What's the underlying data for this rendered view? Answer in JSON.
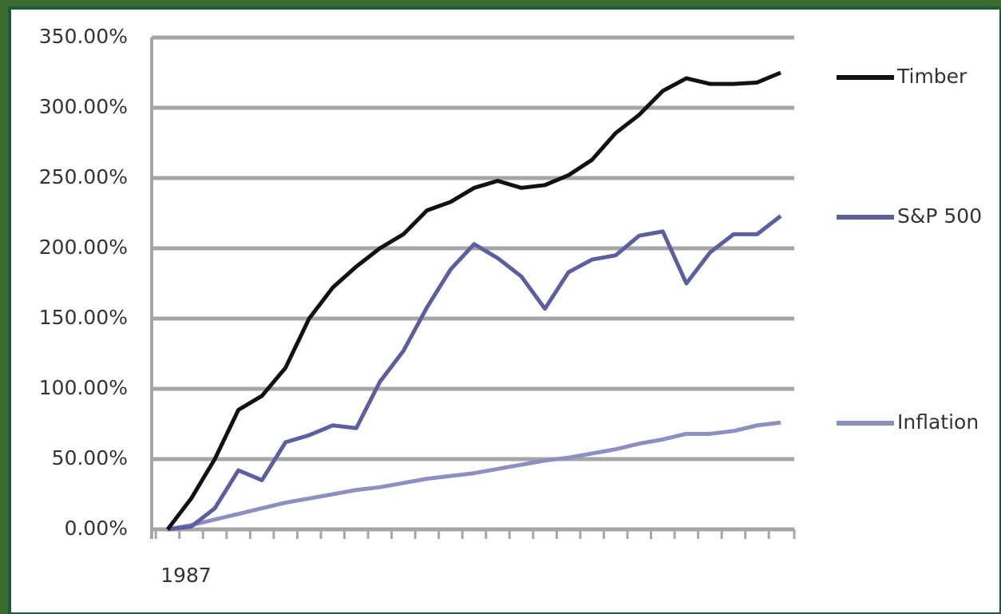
{
  "chart_data": {
    "type": "line",
    "categories": [
      "1987",
      null,
      null,
      null,
      null,
      null,
      null,
      null,
      null,
      null,
      null,
      null,
      null,
      null,
      null,
      null,
      null,
      null,
      null,
      null,
      null,
      null,
      null,
      null,
      null,
      null,
      null
    ],
    "series": [
      {
        "name": "Timber",
        "color": "#111111",
        "values": [
          0,
          22,
          50,
          85,
          95,
          115,
          150,
          172,
          187,
          200,
          210,
          227,
          233,
          243,
          248,
          243,
          245,
          252,
          263,
          282,
          295,
          312,
          321,
          317,
          317,
          318,
          325
        ]
      },
      {
        "name": "S&P 500",
        "color": "#5b5f9e",
        "values": [
          0,
          2,
          15,
          42,
          35,
          62,
          67,
          74,
          72,
          105,
          127,
          158,
          185,
          203,
          193,
          180,
          157,
          183,
          192,
          195,
          209,
          212,
          175,
          197,
          210,
          210,
          223
        ]
      },
      {
        "name": "Inflation",
        "color": "#8c8fc0",
        "values": [
          0,
          3,
          7,
          11,
          15,
          19,
          22,
          25,
          28,
          30,
          33,
          36,
          38,
          40,
          43,
          46,
          49,
          51,
          54,
          57,
          61,
          64,
          68,
          68,
          70,
          74,
          76
        ]
      }
    ],
    "ylim": [
      0,
      350
    ],
    "yticks": [
      {
        "value": 0,
        "label": "0.00%"
      },
      {
        "value": 50,
        "label": "50.00%"
      },
      {
        "value": 100,
        "label": "100.00%"
      },
      {
        "value": 150,
        "label": "150.00%"
      },
      {
        "value": 200,
        "label": "200.00%"
      },
      {
        "value": 250,
        "label": "250.00%"
      },
      {
        "value": 300,
        "label": "300.00%"
      },
      {
        "value": 350,
        "label": "350.00%"
      }
    ],
    "grid": true
  }
}
